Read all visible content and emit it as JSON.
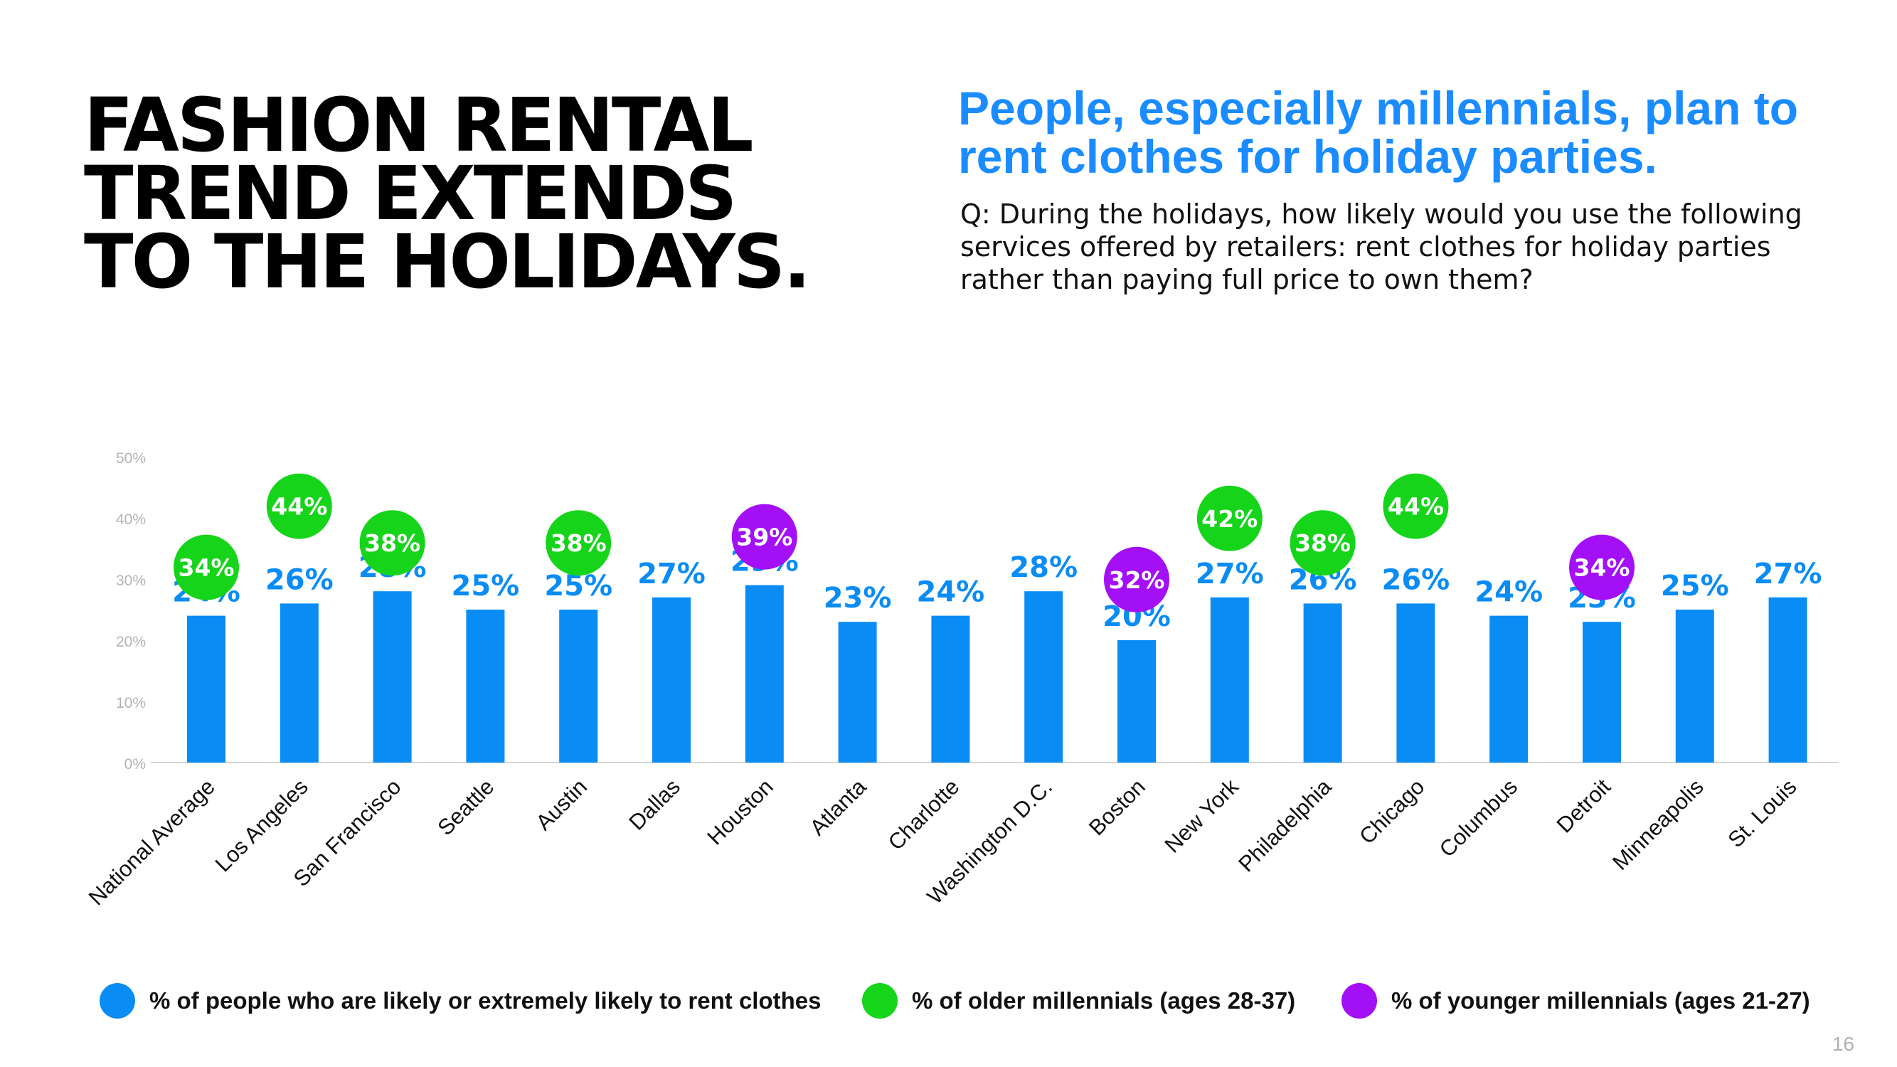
{
  "header": {
    "title": "FASHION RENTAL\nTREND EXTENDS\nTO THE HOLIDAYS.",
    "subtitle": "People, especially millennials, plan to rent clothes for holiday parties.",
    "question": "Q: During the holidays, how likely would you use the following services offered by retailers: rent clothes for holiday parties rather than paying full price to own them?"
  },
  "colors": {
    "bar": "#0a8cf5",
    "older_millennials": "#15d41a",
    "younger_millennials": "#a310f5",
    "axis": "#d4d4d4",
    "tick_text": "#b3b3b3"
  },
  "chart_data": {
    "type": "bar",
    "categories": [
      "National Average",
      "Los Angeles",
      "San Francisco",
      "Seattle",
      "Austin",
      "Dallas",
      "Houston",
      "Atlanta",
      "Charlotte",
      "Washington D.C.",
      "Boston",
      "New York",
      "Philadelphia",
      "Chicago",
      "Columbus",
      "Detroit",
      "Minneapolis",
      "St. Louis"
    ],
    "ylim": [
      0,
      50
    ],
    "yticks": [
      "0%",
      "10%",
      "20%",
      "30%",
      "40%",
      "50%"
    ],
    "grid": false,
    "series": [
      {
        "name": "% of people who are likely or extremely likely to rent clothes",
        "values": [
          24,
          26,
          28,
          25,
          25,
          27,
          29,
          23,
          24,
          28,
          20,
          27,
          26,
          26,
          24,
          23,
          25,
          27
        ],
        "labels": [
          "24%",
          "26%",
          "28%",
          "25%",
          "25%",
          "27%",
          "29%",
          "23%",
          "24%",
          "28%",
          "20%",
          "27%",
          "26%",
          "26%",
          "24%",
          "23%",
          "25%",
          "27%"
        ]
      },
      {
        "name": "% of older millennials (ages 28-37)",
        "values": [
          34,
          44,
          38,
          null,
          38,
          null,
          null,
          null,
          null,
          null,
          null,
          42,
          38,
          44,
          null,
          null,
          null,
          null
        ],
        "labels": [
          "34%",
          "44%",
          "38%",
          null,
          "38%",
          null,
          null,
          null,
          null,
          null,
          null,
          "42%",
          "38%",
          "44%",
          null,
          null,
          null,
          null
        ]
      },
      {
        "name": "% of younger millennials (ages 21-27)",
        "values": [
          null,
          null,
          null,
          null,
          null,
          null,
          39,
          null,
          null,
          null,
          32,
          null,
          null,
          null,
          null,
          34,
          null,
          null
        ],
        "labels": [
          null,
          null,
          null,
          null,
          null,
          null,
          "39%",
          null,
          null,
          null,
          "32%",
          null,
          null,
          null,
          null,
          "34%",
          null,
          null
        ]
      }
    ],
    "legend_position": "bottom"
  },
  "legend": [
    {
      "label": "% of people who are likely or extremely likely to rent clothes",
      "color": "#0a8cf5"
    },
    {
      "label": "% of older millennials (ages 28-37)",
      "color": "#15d41a"
    },
    {
      "label": "% of younger millennials (ages 21-27)",
      "color": "#a310f5"
    }
  ],
  "page_number": "16"
}
